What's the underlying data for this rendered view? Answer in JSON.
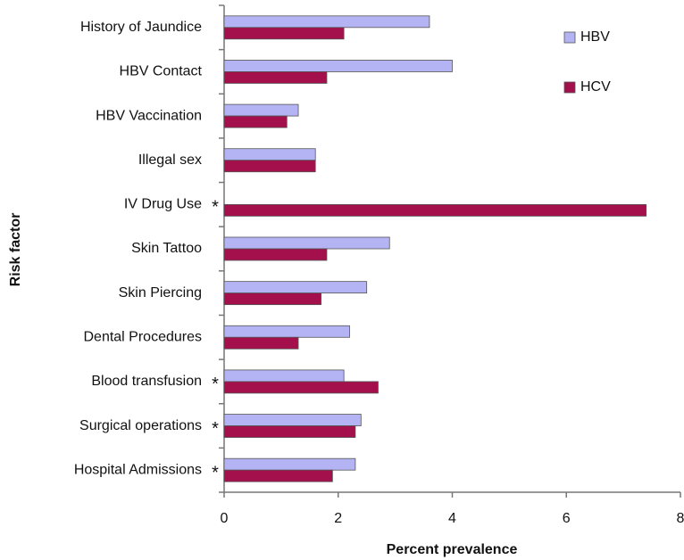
{
  "chart_data": {
    "type": "hbar",
    "xlabel": "Percent prevalence",
    "ylabel": "Risk factor",
    "categories": [
      "History of Jaundice",
      "HBV Contact",
      "HBV Vaccination",
      "Illegal sex",
      "IV Drug Use",
      "Skin Tattoo",
      "Skin Piercing",
      "Dental Procedures",
      "Blood transfusion",
      "Surgical operations",
      "Hospital  Admissions"
    ],
    "markers": [
      null,
      null,
      null,
      null,
      "*",
      null,
      null,
      null,
      "*",
      "*",
      "*"
    ],
    "series": [
      {
        "name": "HBV",
        "color": "#b4b4f4",
        "values": [
          3.6,
          4.0,
          1.3,
          1.6,
          0,
          2.9,
          2.5,
          2.2,
          2.1,
          2.4,
          2.3
        ]
      },
      {
        "name": "HCV",
        "color": "#a3104c",
        "values": [
          2.1,
          1.8,
          1.1,
          1.6,
          7.4,
          1.8,
          1.7,
          1.3,
          2.7,
          2.3,
          1.9
        ]
      }
    ],
    "xlim": [
      0,
      8
    ],
    "xticks": [
      0,
      2,
      4,
      6,
      8
    ],
    "grid": false,
    "legend": "upper right"
  }
}
